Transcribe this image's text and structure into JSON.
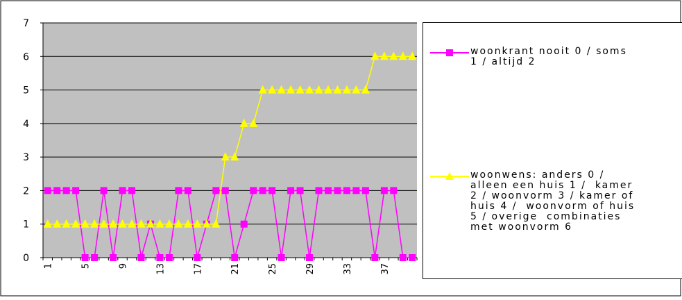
{
  "chart_data": {
    "type": "line",
    "x": [
      1,
      2,
      3,
      4,
      5,
      6,
      7,
      8,
      9,
      10,
      11,
      12,
      13,
      14,
      15,
      16,
      17,
      18,
      19,
      20,
      21,
      22,
      23,
      24,
      25,
      26,
      27,
      28,
      29,
      30,
      31,
      32,
      33,
      34,
      35,
      36,
      37,
      38,
      39,
      40
    ],
    "x_tick_labels": [
      "1",
      "5",
      "9",
      "13",
      "17",
      "21",
      "25",
      "29",
      "33",
      "37"
    ],
    "ylim": [
      0,
      7
    ],
    "y_ticks": [
      "0",
      "1",
      "2",
      "3",
      "4",
      "5",
      "6",
      "7"
    ],
    "grid": true,
    "plot_background": "#c0c0c0",
    "legend_position": "right",
    "series": [
      {
        "name": "woonkrant nooit 0 / soms 1 / altijd 2",
        "color": "#ff00ff",
        "marker": "square",
        "values": [
          2,
          2,
          2,
          2,
          0,
          0,
          2,
          0,
          2,
          2,
          0,
          1,
          0,
          0,
          2,
          2,
          0,
          1,
          2,
          2,
          0,
          1,
          2,
          2,
          2,
          0,
          2,
          2,
          0,
          2,
          2,
          2,
          2,
          2,
          2,
          0,
          2,
          2,
          0,
          0
        ]
      },
      {
        "name": "woonwens: anders 0 / alleen een huis 1 / kamer 2 / woonvorm 3 / kamer of huis 4 / woonvorm of huis 5 / overige combinaties met woonvorm 6",
        "color": "#ffff00",
        "marker": "triangle",
        "values": [
          1,
          1,
          1,
          1,
          1,
          1,
          1,
          1,
          1,
          1,
          1,
          1,
          1,
          1,
          1,
          1,
          1,
          1,
          1,
          3,
          3,
          4,
          4,
          5,
          5,
          5,
          5,
          5,
          5,
          5,
          5,
          5,
          5,
          5,
          5,
          6,
          6,
          6,
          6,
          6
        ]
      }
    ]
  },
  "legend": {
    "entries": [
      {
        "label": "woonkrant nooit 0 / soms\n1 / altijd 2",
        "color": "#ff00ff",
        "marker": "square"
      },
      {
        "label": "woonwens: anders 0 /\nalleen een huis 1 /  kamer\n2 / woonvorm 3 / kamer of\nhuis 4 /  woonvorm of huis\n5 / overige  combinaties\nmet woonvorm 6",
        "color": "#ffff00",
        "marker": "triangle"
      }
    ]
  }
}
